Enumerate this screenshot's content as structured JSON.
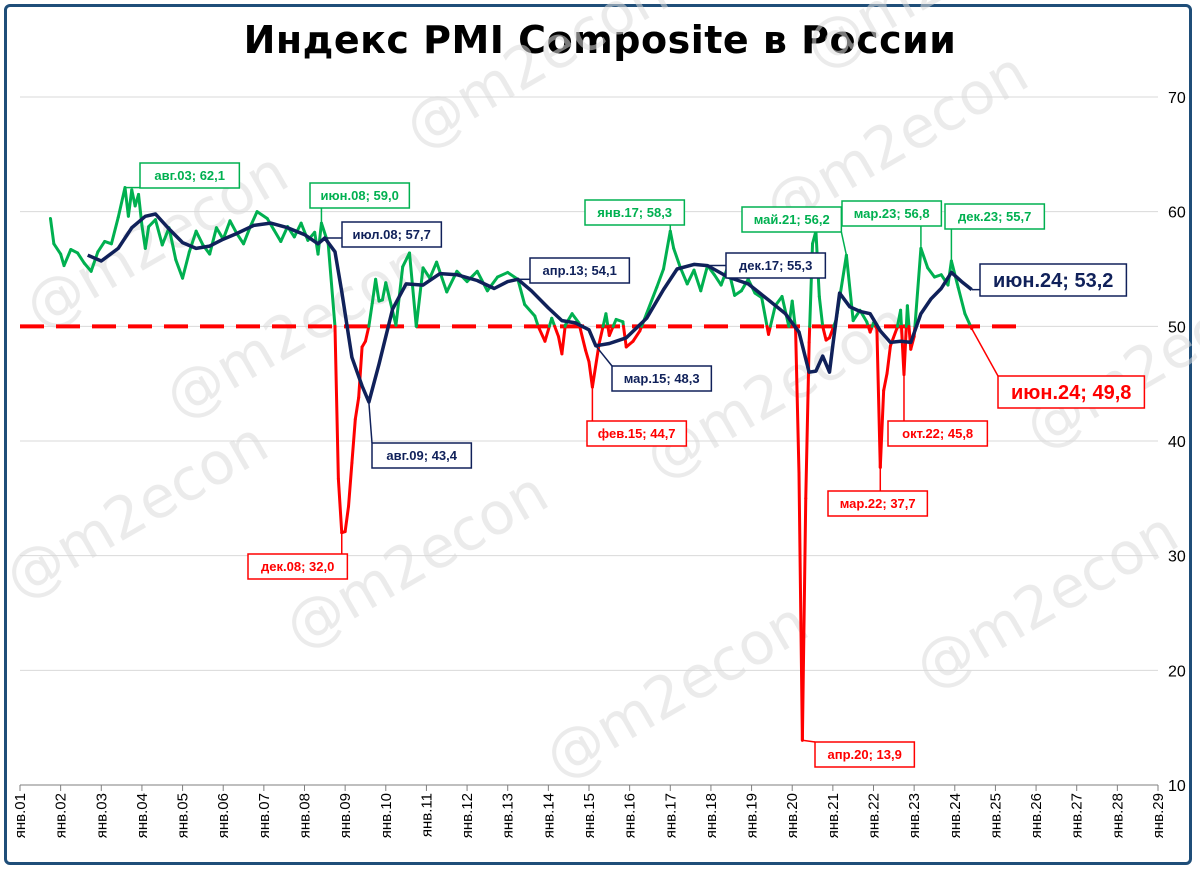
{
  "colors": {
    "pmi": "#00b050",
    "below50": "#ff0000",
    "ma": "#10215a",
    "threshold": "#ff0000",
    "grid": "#d9d9d9",
    "frame": "#1f4e79"
  },
  "watermark": "@m2econ",
  "chart_data": {
    "type": "line",
    "title": "Индекс PMI Composite в России",
    "ylim": [
      10,
      70
    ],
    "yticks": [
      10,
      20,
      30,
      40,
      50,
      60,
      70
    ],
    "y_axis_side": "right",
    "grid": true,
    "x_range": [
      "2001-01",
      "2029-01"
    ],
    "xtick_labels": [
      "янв.01",
      "янв.02",
      "янв.03",
      "янв.04",
      "янв.05",
      "янв.06",
      "янв.07",
      "янв.08",
      "янв.09",
      "янв.10",
      "янв.11",
      "янв.12",
      "янв.13",
      "янв.14",
      "янв.15",
      "янв.16",
      "янв.17",
      "янв.18",
      "янв.19",
      "янв.20",
      "янв.21",
      "янв.22",
      "янв.23",
      "янв.24",
      "янв.25",
      "янв.26",
      "янв.27",
      "янв.28",
      "янв.29"
    ],
    "threshold": {
      "value": 50,
      "from": "2001-01",
      "to": "2025-08",
      "style": "dashed"
    },
    "series": [
      {
        "role": "pmi",
        "points": [
          [
            "2001-10",
            59.4
          ],
          [
            "2001-11",
            57.2
          ],
          [
            "2002-01",
            56.3
          ],
          [
            "2002-02",
            55.3
          ],
          [
            "2002-04",
            56.7
          ],
          [
            "2002-06",
            56.4
          ],
          [
            "2002-08",
            55.5
          ],
          [
            "2002-10",
            54.8
          ],
          [
            "2002-12",
            56.5
          ],
          [
            "2003-02",
            57.4
          ],
          [
            "2003-04",
            57.2
          ],
          [
            "2003-06",
            59.5
          ],
          [
            "2003-08",
            62.1
          ],
          [
            "2003-09",
            59.6
          ],
          [
            "2003-10",
            61.9
          ],
          [
            "2003-11",
            60.5
          ],
          [
            "2003-12",
            61.5
          ],
          [
            "2004-01",
            58.8
          ],
          [
            "2004-02",
            56.8
          ],
          [
            "2004-03",
            58.7
          ],
          [
            "2004-05",
            59.3
          ],
          [
            "2004-07",
            57.1
          ],
          [
            "2004-09",
            58.6
          ],
          [
            "2004-11",
            55.8
          ],
          [
            "2005-01",
            54.2
          ],
          [
            "2005-03",
            56.5
          ],
          [
            "2005-05",
            58.3
          ],
          [
            "2005-07",
            57.1
          ],
          [
            "2005-09",
            56.3
          ],
          [
            "2005-11",
            58.6
          ],
          [
            "2006-01",
            57.6
          ],
          [
            "2006-03",
            59.2
          ],
          [
            "2006-05",
            58.1
          ],
          [
            "2006-07",
            57.2
          ],
          [
            "2006-09",
            58.7
          ],
          [
            "2006-11",
            60.0
          ],
          [
            "2007-02",
            59.4
          ],
          [
            "2007-04",
            58.4
          ],
          [
            "2007-06",
            57.4
          ],
          [
            "2007-08",
            58.7
          ],
          [
            "2007-10",
            57.8
          ],
          [
            "2007-12",
            59.0
          ],
          [
            "2008-02",
            57.5
          ],
          [
            "2008-04",
            58.2
          ],
          [
            "2008-05",
            56.3
          ],
          [
            "2008-06",
            59.0
          ],
          [
            "2008-08",
            57.2
          ],
          [
            "2008-10",
            50.0
          ],
          [
            "2008-11",
            36.7
          ],
          [
            "2008-12",
            32.0
          ],
          [
            "2009-01",
            32.1
          ],
          [
            "2009-02",
            34.3
          ],
          [
            "2009-03",
            38.1
          ],
          [
            "2009-04",
            41.9
          ],
          [
            "2009-05",
            43.8
          ],
          [
            "2009-06",
            48.2
          ],
          [
            "2009-07",
            48.7
          ],
          [
            "2009-08",
            50.0
          ],
          [
            "2009-09",
            52.0
          ],
          [
            "2009-10",
            54.1
          ],
          [
            "2009-11",
            52.2
          ],
          [
            "2009-12",
            52.3
          ],
          [
            "2010-01",
            53.8
          ],
          [
            "2010-04",
            50.1
          ],
          [
            "2010-06",
            55.2
          ],
          [
            "2010-08",
            56.4
          ],
          [
            "2010-10",
            50.0
          ],
          [
            "2010-12",
            55.1
          ],
          [
            "2011-02",
            54.2
          ],
          [
            "2011-04",
            55.6
          ],
          [
            "2011-07",
            53.0
          ],
          [
            "2011-10",
            54.8
          ],
          [
            "2012-01",
            53.9
          ],
          [
            "2012-04",
            54.8
          ],
          [
            "2012-07",
            53.1
          ],
          [
            "2012-10",
            54.3
          ],
          [
            "2013-01",
            54.7
          ],
          [
            "2013-04",
            54.1
          ],
          [
            "2013-06",
            51.9
          ],
          [
            "2013-09",
            50.9
          ],
          [
            "2013-10",
            50.0
          ],
          [
            "2013-12",
            48.7
          ],
          [
            "2014-02",
            50.7
          ],
          [
            "2014-04",
            49.1
          ],
          [
            "2014-05",
            47.6
          ],
          [
            "2014-06",
            50.1
          ],
          [
            "2014-08",
            51.1
          ],
          [
            "2014-10",
            50.3
          ],
          [
            "2014-12",
            47.9
          ],
          [
            "2015-01",
            46.9
          ],
          [
            "2015-02",
            44.7
          ],
          [
            "2015-04",
            48.5
          ],
          [
            "2015-06",
            51.1
          ],
          [
            "2015-07",
            49.2
          ],
          [
            "2015-09",
            50.6
          ],
          [
            "2015-11",
            50.4
          ],
          [
            "2015-12",
            48.2
          ],
          [
            "2016-02",
            48.7
          ],
          [
            "2016-04",
            49.6
          ],
          [
            "2016-06",
            51.1
          ],
          [
            "2016-09",
            53.4
          ],
          [
            "2016-11",
            55.0
          ],
          [
            "2017-01",
            58.3
          ],
          [
            "2017-02",
            56.8
          ],
          [
            "2017-04",
            55.1
          ],
          [
            "2017-06",
            53.7
          ],
          [
            "2017-08",
            54.9
          ],
          [
            "2017-10",
            53.1
          ],
          [
            "2017-12",
            55.3
          ],
          [
            "2018-02",
            54.5
          ],
          [
            "2018-04",
            53.6
          ],
          [
            "2018-06",
            55.2
          ],
          [
            "2018-08",
            52.7
          ],
          [
            "2018-10",
            53.1
          ],
          [
            "2018-12",
            54.1
          ],
          [
            "2019-02",
            52.9
          ],
          [
            "2019-04",
            52.5
          ],
          [
            "2019-06",
            49.3
          ],
          [
            "2019-08",
            51.8
          ],
          [
            "2019-10",
            52.6
          ],
          [
            "2019-12",
            50.0
          ],
          [
            "2020-01",
            52.2
          ],
          [
            "2020-02",
            49.7
          ],
          [
            "2020-03",
            37.2
          ],
          [
            "2020-04",
            13.9
          ],
          [
            "2020-05",
            35.0
          ],
          [
            "2020-06",
            48.6
          ],
          [
            "2020-07",
            57.2
          ],
          [
            "2020-08",
            58.3
          ],
          [
            "2020-09",
            52.6
          ],
          [
            "2020-10",
            50.0
          ],
          [
            "2020-11",
            48.8
          ],
          [
            "2020-12",
            49.0
          ],
          [
            "2021-02",
            50.6
          ],
          [
            "2021-05",
            56.2
          ],
          [
            "2021-07",
            50.5
          ],
          [
            "2021-09",
            51.4
          ],
          [
            "2021-11",
            50.4
          ],
          [
            "2021-12",
            49.5
          ],
          [
            "2022-01",
            50.3
          ],
          [
            "2022-02",
            49.8
          ],
          [
            "2022-03",
            37.7
          ],
          [
            "2022-04",
            44.4
          ],
          [
            "2022-05",
            45.9
          ],
          [
            "2022-06",
            48.3
          ],
          [
            "2022-08",
            49.9
          ],
          [
            "2022-09",
            51.4
          ],
          [
            "2022-10",
            45.8
          ],
          [
            "2022-11",
            51.8
          ],
          [
            "2022-12",
            48.0
          ],
          [
            "2023-01",
            49.1
          ],
          [
            "2023-03",
            56.8
          ],
          [
            "2023-05",
            55.1
          ],
          [
            "2023-07",
            54.3
          ],
          [
            "2023-09",
            54.5
          ],
          [
            "2023-11",
            53.6
          ],
          [
            "2023-12",
            55.7
          ],
          [
            "2024-02",
            53.4
          ],
          [
            "2024-04",
            51.1
          ],
          [
            "2024-06",
            49.8
          ]
        ]
      },
      {
        "role": "moving-average",
        "points": [
          [
            "2002-09",
            56.2
          ],
          [
            "2003-01",
            55.7
          ],
          [
            "2003-06",
            56.8
          ],
          [
            "2003-10",
            58.6
          ],
          [
            "2004-02",
            59.6
          ],
          [
            "2004-05",
            59.8
          ],
          [
            "2004-09",
            58.5
          ],
          [
            "2005-01",
            57.3
          ],
          [
            "2005-05",
            56.8
          ],
          [
            "2005-09",
            57.0
          ],
          [
            "2006-01",
            57.6
          ],
          [
            "2006-05",
            58.1
          ],
          [
            "2006-10",
            58.8
          ],
          [
            "2007-03",
            59.0
          ],
          [
            "2007-08",
            58.6
          ],
          [
            "2008-01",
            58.0
          ],
          [
            "2008-05",
            57.2
          ],
          [
            "2008-07",
            57.7
          ],
          [
            "2008-10",
            56.5
          ],
          [
            "2008-12",
            53.0
          ],
          [
            "2009-03",
            47.3
          ],
          [
            "2009-06",
            44.8
          ],
          [
            "2009-08",
            43.4
          ],
          [
            "2009-11",
            46.7
          ],
          [
            "2010-03",
            51.5
          ],
          [
            "2010-07",
            53.7
          ],
          [
            "2010-12",
            53.6
          ],
          [
            "2011-05",
            54.6
          ],
          [
            "2011-10",
            54.5
          ],
          [
            "2012-04",
            54.0
          ],
          [
            "2012-09",
            53.3
          ],
          [
            "2013-01",
            53.9
          ],
          [
            "2013-04",
            54.1
          ],
          [
            "2013-08",
            53.1
          ],
          [
            "2014-01",
            51.6
          ],
          [
            "2014-05",
            50.5
          ],
          [
            "2014-09",
            50.3
          ],
          [
            "2015-01",
            49.7
          ],
          [
            "2015-03",
            48.3
          ],
          [
            "2015-07",
            48.5
          ],
          [
            "2015-12",
            49.0
          ],
          [
            "2016-06",
            50.7
          ],
          [
            "2016-11",
            53.2
          ],
          [
            "2017-03",
            55.0
          ],
          [
            "2017-08",
            55.4
          ],
          [
            "2017-12",
            55.3
          ],
          [
            "2018-06",
            54.3
          ],
          [
            "2018-12",
            53.7
          ],
          [
            "2019-06",
            52.3
          ],
          [
            "2019-11",
            51.1
          ],
          [
            "2020-03",
            49.5
          ],
          [
            "2020-06",
            46.0
          ],
          [
            "2020-08",
            46.1
          ],
          [
            "2020-10",
            47.4
          ],
          [
            "2020-12",
            46.0
          ],
          [
            "2021-01",
            48.4
          ],
          [
            "2021-03",
            52.9
          ],
          [
            "2021-06",
            51.7
          ],
          [
            "2021-09",
            51.3
          ],
          [
            "2021-12",
            51.1
          ],
          [
            "2022-03",
            49.6
          ],
          [
            "2022-06",
            48.6
          ],
          [
            "2022-09",
            48.7
          ],
          [
            "2022-12",
            48.6
          ],
          [
            "2023-03",
            51.1
          ],
          [
            "2023-06",
            52.4
          ],
          [
            "2023-09",
            53.3
          ],
          [
            "2023-12",
            54.7
          ],
          [
            "2024-03",
            53.9
          ],
          [
            "2024-06",
            53.2
          ]
        ]
      }
    ],
    "annotations": [
      {
        "text": "авг.03; 62,1",
        "color": "green",
        "point": [
          "2003-08",
          62.1
        ]
      },
      {
        "text": "июн.08; 59,0",
        "color": "green",
        "point": [
          "2008-06",
          59.0
        ]
      },
      {
        "text": "янв.17; 58,3",
        "color": "green",
        "point": [
          "2017-01",
          58.3
        ]
      },
      {
        "text": "май.21; 56,2",
        "color": "green",
        "point": [
          "2021-05",
          56.2
        ]
      },
      {
        "text": "мар.23; 56,8",
        "color": "green",
        "point": [
          "2023-03",
          56.8
        ]
      },
      {
        "text": "дек.23; 55,7",
        "color": "green",
        "point": [
          "2023-12",
          55.7
        ]
      },
      {
        "text": "июл.08; 57,7",
        "color": "navy",
        "point": [
          "2008-07",
          57.7
        ]
      },
      {
        "text": "апр.13; 54,1",
        "color": "navy",
        "point": [
          "2013-04",
          54.1
        ]
      },
      {
        "text": "дек.17; 55,3",
        "color": "navy",
        "point": [
          "2017-12",
          55.3
        ]
      },
      {
        "text": "мар.15; 48,3",
        "color": "navy",
        "point": [
          "2015-03",
          48.3
        ]
      },
      {
        "text": "авг.09; 43,4",
        "color": "navy",
        "point": [
          "2009-08",
          43.4
        ]
      },
      {
        "text": "июн.24; 53,2",
        "color": "navy",
        "point": [
          "2024-06",
          53.2
        ],
        "large": true
      },
      {
        "text": "дек.08; 32,0",
        "color": "red",
        "point": [
          "2008-12",
          32.0
        ]
      },
      {
        "text": "фев.15; 44,7",
        "color": "red",
        "point": [
          "2015-02",
          44.7
        ]
      },
      {
        "text": "апр.20; 13,9",
        "color": "red",
        "point": [
          "2020-04",
          13.9
        ]
      },
      {
        "text": "мар.22; 37,7",
        "color": "red",
        "point": [
          "2022-03",
          37.7
        ]
      },
      {
        "text": "окт.22; 45,8",
        "color": "red",
        "point": [
          "2022-10",
          45.8
        ]
      },
      {
        "text": "июн.24; 49,8",
        "color": "red",
        "point": [
          "2024-06",
          49.8
        ],
        "large": true
      }
    ]
  }
}
